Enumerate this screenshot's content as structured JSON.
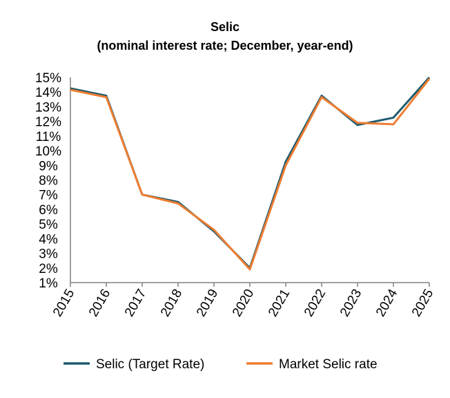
{
  "chart_data": {
    "type": "line",
    "title": "Selic",
    "subtitle": "(nominal interest rate; December, year-end)",
    "xlabel": "",
    "ylabel": "",
    "x": [
      "2015",
      "2016",
      "2017",
      "2018",
      "2019",
      "2020",
      "2021",
      "2022",
      "2023",
      "2024",
      "2025"
    ],
    "ylim": [
      1,
      15
    ],
    "yticks": [
      "1%",
      "2%",
      "3%",
      "4%",
      "5%",
      "6%",
      "7%",
      "8%",
      "9%",
      "10%",
      "11%",
      "12%",
      "13%",
      "14%",
      "15%"
    ],
    "grid": false,
    "legend_position": "bottom",
    "series": [
      {
        "name": "Selic (Target Rate)",
        "color": "#1f5b6e",
        "values": [
          14.25,
          13.75,
          7.0,
          6.5,
          4.5,
          2.0,
          9.25,
          13.75,
          11.75,
          12.25,
          15.0
        ]
      },
      {
        "name": "Market Selic rate",
        "color": "#ee7d31",
        "values": [
          14.15,
          13.65,
          7.0,
          6.4,
          4.6,
          1.9,
          9.0,
          13.65,
          11.9,
          11.8,
          14.9
        ]
      }
    ]
  }
}
